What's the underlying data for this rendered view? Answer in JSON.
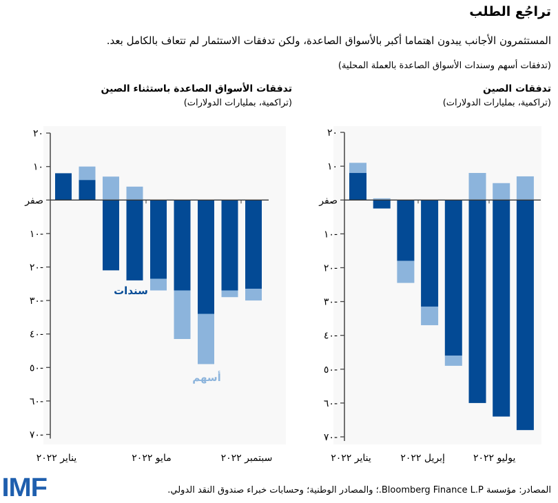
{
  "title": "تراجُع الطلب",
  "subtitle": "المستثمرون الأجانب يبدون اهتماما أكبر بالأسواق الصاعدة، ولكن تدفقات الاستثمار لم تتعاف بالكامل بعد.",
  "subtitle2": "(تدفقات أسهم وسندات الأسواق الصاعدة بالعملة المحلية)",
  "source": "المصادر: مؤسسة Bloomberg Finance L.P.؛ والمصادر الوطنية؛ وحسابات خبراء صندوق النقد الدولي.",
  "logo": "IMF",
  "colors": {
    "bonds": "#034a95",
    "equities": "#8cb4dc",
    "plot_bg": "#f8f8f8"
  },
  "chart_data": [
    {
      "type": "bar",
      "stacked": true,
      "title": "تدفقات الأسواق الصاعدة باستثناء الصين",
      "ylabel": "(تراكمية، بمليارات الدولارات)",
      "ylim": [
        -70,
        20
      ],
      "yticks": [
        20,
        10,
        0,
        -10,
        -20,
        -30,
        -40,
        -50,
        -60,
        -70
      ],
      "ytick_labels": [
        "٢٠",
        "١٠",
        "صفر",
        "١٠-",
        "٢٠-",
        "٣٠-",
        "٤٠-",
        "٥٠-",
        "٦٠-",
        "٧٠-"
      ],
      "xtick_labels": [
        {
          "index": 0,
          "label": "يناير ٢٠٢٢"
        },
        {
          "index": 4,
          "label": "مايو ٢٠٢٢"
        },
        {
          "index": 8,
          "label": "سبتمبر ٢٠٢٢"
        }
      ],
      "categories": [
        "2022-01",
        "2022-02",
        "2022-03",
        "2022-04",
        "2022-05",
        "2022-06",
        "2022-07",
        "2022-08",
        "2022-09"
      ],
      "series": [
        {
          "name": "سندات",
          "values": [
            8,
            6,
            -21,
            -24,
            -23.5,
            -27,
            -34,
            -27,
            -26.5
          ]
        },
        {
          "name": "أسهم",
          "values": [
            0,
            4,
            7,
            4,
            -3.5,
            -14.5,
            -15,
            -2,
            -3.5
          ]
        }
      ]
    },
    {
      "type": "bar",
      "stacked": true,
      "title": "تدفقات الصين",
      "ylabel": "(تراكمية، بمليارات الدولارات)",
      "ylim": [
        -70,
        20
      ],
      "yticks": [
        20,
        10,
        0,
        -10,
        -20,
        -30,
        -40,
        -50,
        -60,
        -70
      ],
      "ytick_labels": [
        "٢٠",
        "١٠",
        "صفر",
        "١٠-",
        "٢٠-",
        "٣٠-",
        "٤٠-",
        "٥٠-",
        "٦٠-",
        "٧٠-"
      ],
      "xtick_labels": [
        {
          "index": 0,
          "label": "يناير ٢٠٢٢"
        },
        {
          "index": 3,
          "label": "إبريل ٢٠٢٢"
        },
        {
          "index": 6,
          "label": "يوليو ٢٠٢٢"
        }
      ],
      "categories": [
        "2022-01",
        "2022-02",
        "2022-03",
        "2022-04",
        "2022-05",
        "2022-06",
        "2022-07",
        "2022-08"
      ],
      "series": [
        {
          "name": "سندات",
          "values": [
            8,
            -2.5,
            -18,
            -31.5,
            -46,
            -60,
            -64,
            -68
          ]
        },
        {
          "name": "أسهم",
          "values": [
            3,
            0.5,
            -6.5,
            -5.5,
            -3,
            8,
            5,
            7
          ]
        }
      ]
    }
  ]
}
